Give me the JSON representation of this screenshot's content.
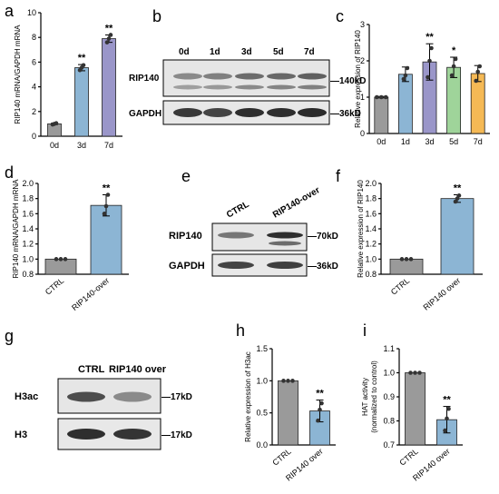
{
  "figure": {
    "panel_letters": [
      "a",
      "b",
      "c",
      "d",
      "e",
      "f",
      "g",
      "h",
      "i"
    ],
    "colors": {
      "gray": "#9a9a9a",
      "blue": "#8cb5d4",
      "purple": "#9a96c9",
      "green": "#9fd49a",
      "orange": "#f5b955",
      "marker": "#333333"
    }
  },
  "blots": {
    "b": {
      "lanes": [
        "0d",
        "1d",
        "3d",
        "5d",
        "7d"
      ],
      "rows": [
        {
          "label": "RIP140",
          "kd": "—140kD"
        },
        {
          "label": "GAPDH",
          "kd": "—36kD"
        }
      ]
    },
    "e": {
      "lanes": [
        "CTRL",
        "RIP140-over"
      ],
      "rows": [
        {
          "label": "RIP140",
          "kd": "—70kD"
        },
        {
          "label": "GAPDH",
          "kd": "—36kD"
        }
      ]
    },
    "g": {
      "lanes": [
        "CTRL",
        "RIP140 over"
      ],
      "rows": [
        {
          "label": "H3ac",
          "kd": "—17kD"
        },
        {
          "label": "H3",
          "kd": "—17kD"
        }
      ]
    }
  },
  "chart_data": [
    {
      "panel": "a",
      "type": "bar",
      "ylabel": "RIP140 mRNA/GAPDH mRNA",
      "categories": [
        "0d",
        "3d",
        "7d"
      ],
      "values": [
        1.0,
        5.55,
        7.9
      ],
      "errors": [
        0.05,
        0.25,
        0.3
      ],
      "points": [
        [
          0.95,
          1.0,
          1.05
        ],
        [
          5.35,
          5.55,
          5.75
        ],
        [
          7.6,
          7.9,
          8.2
        ]
      ],
      "significance": [
        "",
        "**",
        "**"
      ],
      "ylim": [
        0,
        10
      ],
      "yticks": [
        "0",
        "2",
        "4",
        "6",
        "8",
        "10"
      ],
      "colors": [
        "#9a9a9a",
        "#8cb5d4",
        "#9a96c9"
      ]
    },
    {
      "panel": "c",
      "type": "bar",
      "ylabel": "Relative expression of RIP140",
      "categories": [
        "0d",
        "1d",
        "3d",
        "5d",
        "7d"
      ],
      "values": [
        1.0,
        1.63,
        1.97,
        1.82,
        1.65
      ],
      "errors": [
        0.02,
        0.2,
        0.5,
        0.28,
        0.22
      ],
      "points": [
        [
          1.0,
          1.0,
          1.0
        ],
        [
          1.5,
          1.6,
          1.8
        ],
        [
          1.55,
          2.0,
          2.35
        ],
        [
          1.6,
          1.85,
          2.05
        ],
        [
          1.45,
          1.7,
          1.85
        ]
      ],
      "significance": [
        "",
        "",
        "**",
        "*",
        ""
      ],
      "ylim": [
        0,
        3
      ],
      "yticks": [
        "0",
        "1",
        "2",
        "3"
      ],
      "colors": [
        "#9a9a9a",
        "#8cb5d4",
        "#9a96c9",
        "#9fd49a",
        "#f5b955"
      ]
    },
    {
      "panel": "d",
      "type": "bar",
      "ylabel": "RIP140 mRNA/GAPDH mRNA",
      "categories": [
        "CTRL",
        "RIP140-over"
      ],
      "values": [
        1.0,
        1.71
      ],
      "errors": [
        0.0,
        0.14
      ],
      "points": [
        [
          1.0,
          1.0,
          1.0
        ],
        [
          1.6,
          1.7,
          1.85
        ]
      ],
      "significance": [
        "",
        "**"
      ],
      "ylim": [
        0.8,
        2.0
      ],
      "yticks": [
        "0.8",
        "1.0",
        "1.2",
        "1.4",
        "1.6",
        "1.8",
        "2.0"
      ],
      "colors": [
        "#9a9a9a",
        "#8cb5d4"
      ]
    },
    {
      "panel": "f",
      "type": "bar",
      "ylabel": "Relative expression of RIP140",
      "categories": [
        "CTRL",
        "RIP140 over"
      ],
      "values": [
        1.0,
        1.8
      ],
      "errors": [
        0.0,
        0.05
      ],
      "points": [
        [
          1.0,
          1.0,
          1.0
        ],
        [
          1.76,
          1.8,
          1.84
        ]
      ],
      "significance": [
        "",
        "**"
      ],
      "ylim": [
        0.8,
        2.0
      ],
      "yticks": [
        "0.8",
        "1.0",
        "1.2",
        "1.4",
        "1.6",
        "1.8",
        "2.0"
      ],
      "colors": [
        "#9a9a9a",
        "#8cb5d4"
      ]
    },
    {
      "panel": "h",
      "type": "bar",
      "ylabel": "Relative expression of H3ac",
      "categories": [
        "CTRL",
        "RIP140 over"
      ],
      "values": [
        1.0,
        0.53
      ],
      "errors": [
        0.0,
        0.17
      ],
      "points": [
        [
          1.0,
          1.0,
          1.0
        ],
        [
          0.38,
          0.55,
          0.65
        ]
      ],
      "significance": [
        "",
        "**"
      ],
      "ylim": [
        0,
        1.5
      ],
      "yticks": [
        "0.0",
        "0.5",
        "1.0",
        "1.5"
      ],
      "colors": [
        "#9a9a9a",
        "#8cb5d4"
      ]
    },
    {
      "panel": "i",
      "type": "bar",
      "ylabel": "HAT activity\n(normalized to control)",
      "categories": [
        "CTRL",
        "RIP140 over"
      ],
      "values": [
        1.0,
        0.805
      ],
      "errors": [
        0.0,
        0.055
      ],
      "points": [
        [
          1.0,
          1.0,
          1.0
        ],
        [
          0.76,
          0.81,
          0.85
        ]
      ],
      "significance": [
        "",
        "**"
      ],
      "ylim": [
        0.7,
        1.1
      ],
      "yticks": [
        "0.7",
        "0.8",
        "0.9",
        "1.0",
        "1.1"
      ],
      "colors": [
        "#9a9a9a",
        "#8cb5d4"
      ]
    }
  ]
}
